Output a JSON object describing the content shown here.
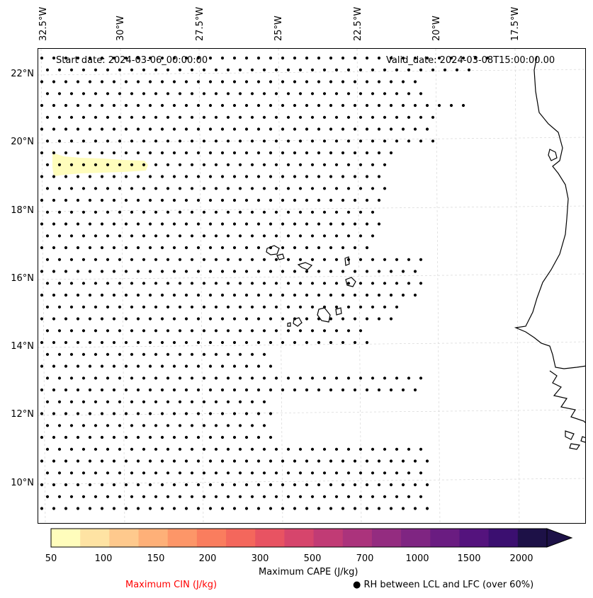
{
  "map": {
    "start_label": "Start date: 2024-03-06_00:00:00",
    "valid_label": "Valid_date: 2024-03-08T15:00:00.00",
    "lon_labels": [
      "32.5°W",
      "30°W",
      "27.5°W",
      "25°W",
      "22.5°W",
      "20°W",
      "17.5°W"
    ],
    "lat_labels": [
      "22°N",
      "20°N",
      "18°N",
      "16°N",
      "14°N",
      "12°N",
      "10°N"
    ],
    "extent": {
      "lon": [
        -32.5,
        -16.5
      ],
      "lat": [
        8.9,
        22.8
      ]
    }
  },
  "colorbar": {
    "label": "Maximum CAPE (J/kg)",
    "tick_labels": [
      "50",
      "100",
      "150",
      "200",
      "300",
      "500",
      "700",
      "1000",
      "1500",
      "2000"
    ],
    "colors": [
      "#fffdbc",
      "#fee3a3",
      "#fec98d",
      "#feb078",
      "#fd9668",
      "#fa7d5e",
      "#f4675c",
      "#e85362",
      "#d6456c",
      "#c13b75",
      "#ab337c",
      "#942c80",
      "#7f2582",
      "#6a1c81",
      "#54137d",
      "#3b0f70",
      "#1d1147"
    ],
    "extend_color": "#1d1147"
  },
  "legend": {
    "cin_label": "Maximum CIN (J/kg)",
    "cin_color": "#ff0000",
    "rh_label": "RH between LCL and LFC (over 60%)",
    "rh_icon": "filled-circle-icon"
  }
}
